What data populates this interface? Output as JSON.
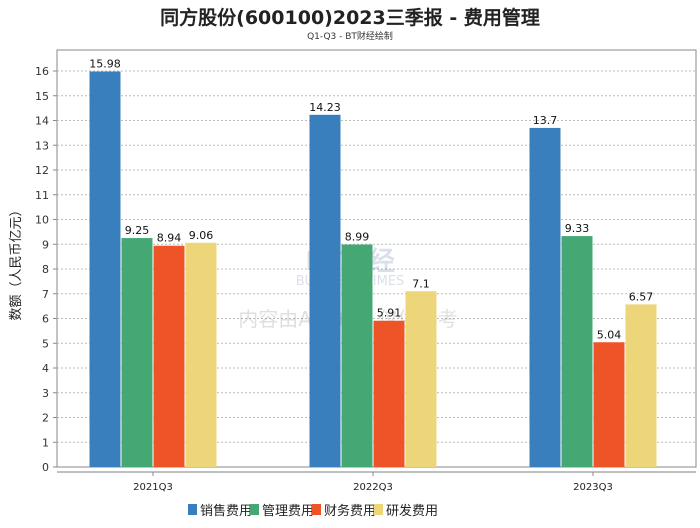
{
  "chart_data": {
    "type": "bar",
    "title": "同方股份(600100)2023三季报 - 费用管理",
    "subtitle": "Q1-Q3 - BT财经绘制",
    "xlabel": "",
    "ylabel": "数额（人民币亿元）",
    "ylim": [
      0,
      16.85
    ],
    "yticks": [
      0,
      1,
      2,
      3,
      4,
      5,
      6,
      7,
      8,
      9,
      10,
      11,
      12,
      13,
      14,
      15,
      16
    ],
    "categories": [
      "2021Q3",
      "2022Q3",
      "2023Q3"
    ],
    "series": [
      {
        "name": "销售费用",
        "color": "#3a7fbd",
        "values": [
          15.98,
          14.23,
          13.7
        ],
        "labels": [
          "15.98",
          "14.23",
          "13.7"
        ]
      },
      {
        "name": "管理费用",
        "color": "#45a874",
        "values": [
          9.25,
          8.99,
          9.33
        ],
        "labels": [
          "9.25",
          "8.99",
          "9.33"
        ]
      },
      {
        "name": "财务费用",
        "color": "#ee5427",
        "values": [
          8.94,
          5.91,
          5.04
        ],
        "labels": [
          "8.94",
          "5.91",
          "5.04"
        ]
      },
      {
        "name": "研发费用",
        "color": "#edd67a",
        "values": [
          9.06,
          7.1,
          6.57
        ],
        "labels": [
          "9.06",
          "7.1",
          "6.57"
        ]
      }
    ],
    "grid": true,
    "legend_position": "bottom",
    "watermark": {
      "line1": "BT财经",
      "line2": "BUSINESS TIMES",
      "line3": "内容由AI生成，仅供参考"
    }
  }
}
